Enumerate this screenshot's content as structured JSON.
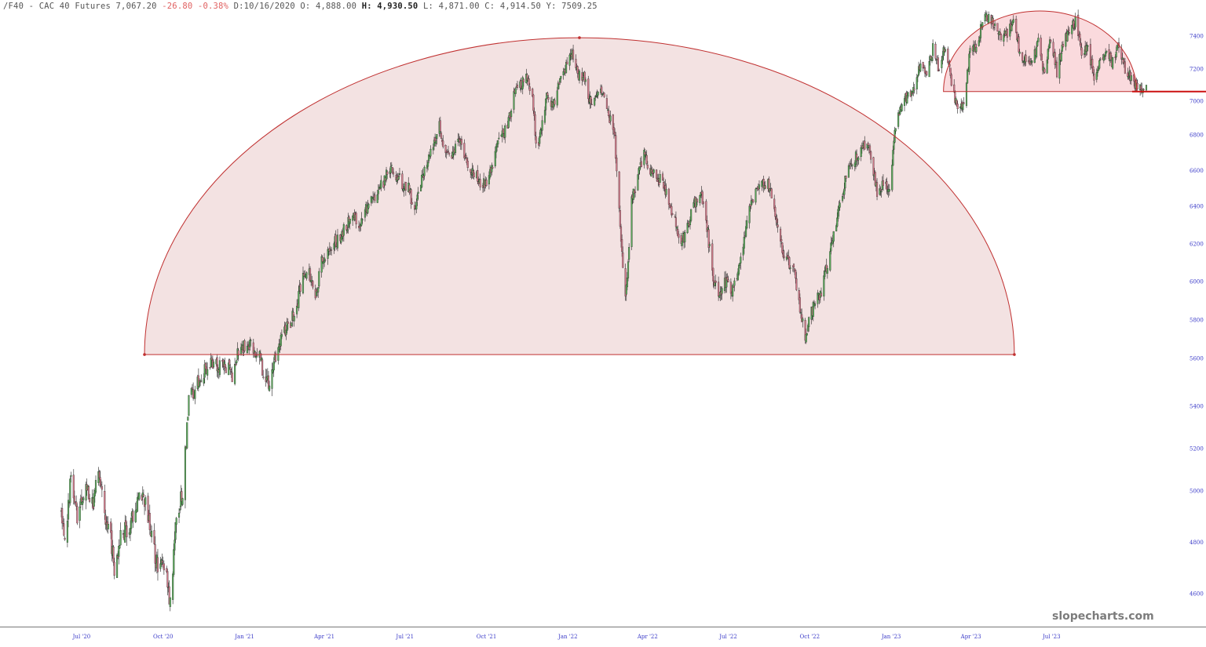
{
  "header": {
    "symbol": "/F40",
    "separator": "-",
    "name": "CAC 40 Futures",
    "last": "7,067.20",
    "change": "-26.80",
    "change_pct": "-0.38%",
    "d_label": "D:",
    "date": "10/16/2020",
    "o_label": "O:",
    "open": "4,888.00",
    "h_label": "H:",
    "high": "4,930.50",
    "l_label": "L:",
    "low": "4,871.00",
    "c_label": "C:",
    "close": "4,914.50",
    "y_label": "Y:",
    "y_value": "7509.25"
  },
  "watermark": "slopecharts.com",
  "colors": {
    "up_candle": "#5aa85a",
    "down_candle": "#d07a8a",
    "wick": "#222222",
    "dome_fill": "#f3e2e2",
    "dome_stroke": "#c03030",
    "top_fill": "#fadadd",
    "support_line": "#cc1111",
    "tick_text": "#3a3ac8"
  },
  "chart_data": {
    "type": "candlestick",
    "title": "CAC 40 Futures",
    "ylim": [
      4480,
      7560
    ],
    "y_ticks": [
      4600,
      4800,
      5000,
      5200,
      5400,
      5600,
      5800,
      6000,
      6200,
      6400,
      6600,
      6800,
      7000,
      7200,
      7400
    ],
    "x_ticks": [
      "Jul '20",
      "Oct '20",
      "Jan '21",
      "Apr '21",
      "Jul '21",
      "Oct '21",
      "Jan '22",
      "Apr '22",
      "Jul '22",
      "Oct '22",
      "Jan '23",
      "Apr '23",
      "Jul '23"
    ],
    "grid": false,
    "x_range": [
      "2020-06-08",
      "2023-10-16"
    ],
    "close_path": [
      [
        "2020-06-08",
        4920
      ],
      [
        "2020-06-12",
        4800
      ],
      [
        "2020-06-19",
        5060
      ],
      [
        "2020-06-26",
        4890
      ],
      [
        "2020-07-06",
        5020
      ],
      [
        "2020-07-13",
        4940
      ],
      [
        "2020-07-20",
        5080
      ],
      [
        "2020-07-27",
        4900
      ],
      [
        "2020-08-03",
        4820
      ],
      [
        "2020-08-07",
        4700
      ],
      [
        "2020-08-14",
        4830
      ],
      [
        "2020-08-21",
        4850
      ],
      [
        "2020-08-28",
        4900
      ],
      [
        "2020-09-04",
        4960
      ],
      [
        "2020-09-11",
        4970
      ],
      [
        "2020-09-18",
        4820
      ],
      [
        "2020-09-25",
        4700
      ],
      [
        "2020-10-02",
        4720
      ],
      [
        "2020-10-09",
        4560
      ],
      [
        "2020-10-16",
        4910
      ],
      [
        "2020-10-23",
        4990
      ],
      [
        "2020-10-30",
        5420
      ],
      [
        "2020-11-06",
        5470
      ],
      [
        "2020-11-13",
        5520
      ],
      [
        "2020-11-20",
        5560
      ],
      [
        "2020-11-27",
        5590
      ],
      [
        "2020-12-04",
        5560
      ],
      [
        "2020-12-11",
        5570
      ],
      [
        "2020-12-18",
        5530
      ],
      [
        "2020-12-24",
        5620
      ],
      [
        "2021-01-04",
        5690
      ],
      [
        "2021-01-11",
        5640
      ],
      [
        "2021-01-18",
        5620
      ],
      [
        "2021-01-25",
        5480
      ],
      [
        "2021-02-01",
        5530
      ],
      [
        "2021-02-08",
        5680
      ],
      [
        "2021-02-15",
        5740
      ],
      [
        "2021-02-22",
        5790
      ],
      [
        "2021-03-01",
        5880
      ],
      [
        "2021-03-08",
        6020
      ],
      [
        "2021-03-15",
        6050
      ],
      [
        "2021-03-22",
        5920
      ],
      [
        "2021-03-29",
        6100
      ],
      [
        "2021-04-05",
        6150
      ],
      [
        "2021-04-12",
        6200
      ],
      [
        "2021-04-19",
        6240
      ],
      [
        "2021-04-26",
        6300
      ],
      [
        "2021-05-03",
        6350
      ],
      [
        "2021-05-10",
        6280
      ],
      [
        "2021-05-17",
        6380
      ],
      [
        "2021-05-24",
        6420
      ],
      [
        "2021-05-31",
        6480
      ],
      [
        "2021-06-07",
        6540
      ],
      [
        "2021-06-14",
        6620
      ],
      [
        "2021-06-21",
        6580
      ],
      [
        "2021-06-28",
        6530
      ],
      [
        "2021-07-05",
        6500
      ],
      [
        "2021-07-12",
        6380
      ],
      [
        "2021-07-19",
        6550
      ],
      [
        "2021-07-26",
        6620
      ],
      [
        "2021-08-02",
        6760
      ],
      [
        "2021-08-09",
        6850
      ],
      [
        "2021-08-16",
        6700
      ],
      [
        "2021-08-23",
        6680
      ],
      [
        "2021-08-30",
        6760
      ],
      [
        "2021-09-06",
        6690
      ],
      [
        "2021-09-13",
        6600
      ],
      [
        "2021-09-20",
        6560
      ],
      [
        "2021-09-27",
        6520
      ],
      [
        "2021-10-04",
        6570
      ],
      [
        "2021-10-11",
        6700
      ],
      [
        "2021-10-18",
        6790
      ],
      [
        "2021-10-25",
        6850
      ],
      [
        "2021-11-01",
        7030
      ],
      [
        "2021-11-08",
        7100
      ],
      [
        "2021-11-15",
        7140
      ],
      [
        "2021-11-22",
        7050
      ],
      [
        "2021-11-26",
        6720
      ],
      [
        "2021-12-01",
        6800
      ],
      [
        "2021-12-08",
        7020
      ],
      [
        "2021-12-15",
        6980
      ],
      [
        "2021-12-22",
        7100
      ],
      [
        "2021-12-29",
        7200
      ],
      [
        "2022-01-05",
        7300
      ],
      [
        "2022-01-12",
        7170
      ],
      [
        "2022-01-19",
        7150
      ],
      [
        "2022-01-26",
        7000
      ],
      [
        "2022-02-02",
        7050
      ],
      [
        "2022-02-09",
        7080
      ],
      [
        "2022-02-16",
        6920
      ],
      [
        "2022-02-23",
        6780
      ],
      [
        "2022-03-01",
        6300
      ],
      [
        "2022-03-07",
        5900
      ],
      [
        "2022-03-14",
        6420
      ],
      [
        "2022-03-21",
        6580
      ],
      [
        "2022-03-28",
        6700
      ],
      [
        "2022-04-04",
        6600
      ],
      [
        "2022-04-11",
        6560
      ],
      [
        "2022-04-18",
        6550
      ],
      [
        "2022-04-25",
        6420
      ],
      [
        "2022-05-02",
        6330
      ],
      [
        "2022-05-09",
        6200
      ],
      [
        "2022-05-16",
        6300
      ],
      [
        "2022-05-23",
        6400
      ],
      [
        "2022-05-30",
        6480
      ],
      [
        "2022-06-06",
        6330
      ],
      [
        "2022-06-13",
        6050
      ],
      [
        "2022-06-20",
        5900
      ],
      [
        "2022-06-27",
        6000
      ],
      [
        "2022-07-04",
        5950
      ],
      [
        "2022-07-11",
        6000
      ],
      [
        "2022-07-18",
        6200
      ],
      [
        "2022-07-25",
        6400
      ],
      [
        "2022-08-01",
        6480
      ],
      [
        "2022-08-08",
        6520
      ],
      [
        "2022-08-15",
        6520
      ],
      [
        "2022-08-22",
        6380
      ],
      [
        "2022-08-29",
        6200
      ],
      [
        "2022-09-05",
        6100
      ],
      [
        "2022-09-12",
        6080
      ],
      [
        "2022-09-19",
        5900
      ],
      [
        "2022-09-26",
        5720
      ],
      [
        "2022-09-30",
        5800
      ],
      [
        "2022-10-07",
        5900
      ],
      [
        "2022-10-14",
        5950
      ],
      [
        "2022-10-21",
        6100
      ],
      [
        "2022-10-28",
        6250
      ],
      [
        "2022-11-04",
        6400
      ],
      [
        "2022-11-11",
        6560
      ],
      [
        "2022-11-18",
        6640
      ],
      [
        "2022-11-25",
        6700
      ],
      [
        "2022-12-02",
        6740
      ],
      [
        "2022-12-09",
        6690
      ],
      [
        "2022-12-16",
        6480
      ],
      [
        "2022-12-23",
        6520
      ],
      [
        "2022-12-30",
        6500
      ],
      [
        "2023-01-06",
        6850
      ],
      [
        "2023-01-13",
        7010
      ],
      [
        "2023-01-20",
        7030
      ],
      [
        "2023-01-27",
        7080
      ],
      [
        "2023-02-03",
        7230
      ],
      [
        "2023-02-10",
        7150
      ],
      [
        "2023-02-17",
        7330
      ],
      [
        "2023-02-24",
        7200
      ],
      [
        "2023-03-03",
        7350
      ],
      [
        "2023-03-10",
        7120
      ],
      [
        "2023-03-17",
        6950
      ],
      [
        "2023-03-24",
        7000
      ],
      [
        "2023-03-31",
        7300
      ],
      [
        "2023-04-07",
        7330
      ],
      [
        "2023-04-14",
        7500
      ],
      [
        "2023-04-21",
        7520
      ],
      [
        "2023-04-28",
        7480
      ],
      [
        "2023-05-05",
        7400
      ],
      [
        "2023-05-12",
        7420
      ],
      [
        "2023-05-19",
        7480
      ],
      [
        "2023-05-26",
        7300
      ],
      [
        "2023-06-02",
        7250
      ],
      [
        "2023-06-09",
        7220
      ],
      [
        "2023-06-16",
        7380
      ],
      [
        "2023-06-23",
        7150
      ],
      [
        "2023-06-30",
        7400
      ],
      [
        "2023-07-07",
        7180
      ],
      [
        "2023-07-14",
        7360
      ],
      [
        "2023-07-21",
        7430
      ],
      [
        "2023-07-28",
        7490
      ],
      [
        "2023-08-04",
        7300
      ],
      [
        "2023-08-11",
        7340
      ],
      [
        "2023-08-18",
        7150
      ],
      [
        "2023-08-25",
        7250
      ],
      [
        "2023-09-01",
        7300
      ],
      [
        "2023-09-08",
        7240
      ],
      [
        "2023-09-15",
        7360
      ],
      [
        "2023-09-22",
        7200
      ],
      [
        "2023-09-29",
        7150
      ],
      [
        "2023-10-06",
        7080
      ],
      [
        "2023-10-16",
        7067
      ]
    ],
    "annotations": [
      {
        "type": "semicircle",
        "start": "2020-09-10",
        "end": "2023-05-20",
        "base": 5620,
        "peak": 7390,
        "label": ""
      },
      {
        "type": "semicircle",
        "start": "2023-03-01",
        "end": "2023-10-05",
        "base": 7060,
        "peak": 7560,
        "label": ""
      },
      {
        "type": "horizontal_line",
        "start": "2023-09-30",
        "end": "2023-12-31",
        "value": 7060,
        "label": ""
      }
    ]
  }
}
